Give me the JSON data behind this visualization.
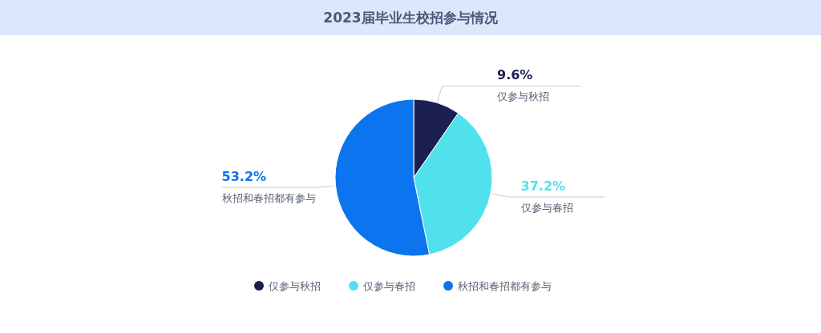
{
  "chart_data": {
    "type": "pie",
    "title": "2023届毕业生校招参与情况",
    "categories": [
      "仅参与秋招",
      "仅参与春招",
      "秋招和春招都有参与"
    ],
    "values": [
      9.6,
      37.2,
      53.2
    ],
    "colors": [
      "#1b1f52",
      "#50e1ec",
      "#0b74ee"
    ],
    "value_labels": [
      "9.6%",
      "37.2%",
      "53.2%"
    ],
    "legend": "bottom"
  }
}
